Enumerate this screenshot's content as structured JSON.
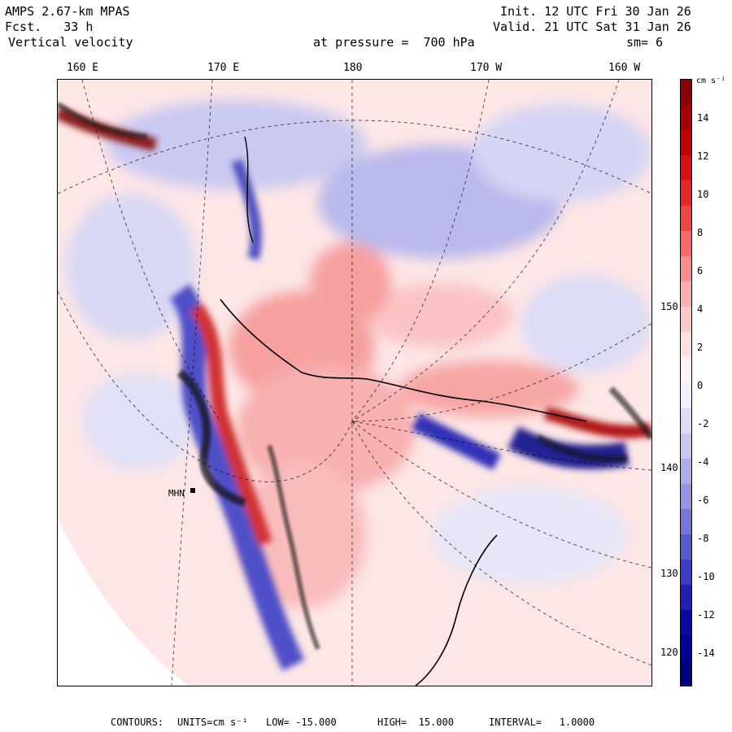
{
  "header": {
    "model": "AMPS 2.67-km MPAS",
    "fcst": "Fcst.   33 h",
    "field": "Vertical velocity",
    "init": "Init. 12 UTC Fri 30 Jan 26",
    "valid": "Valid. 21 UTC Sat 31 Jan 26",
    "pressure": "at pressure =  700 hPa",
    "smooth": "sm= 6"
  },
  "lon_labels": [
    "160 E",
    "170 E",
    "180",
    "170 W",
    "160 W"
  ],
  "lat_labels": [
    "150 W",
    "140 W",
    "130 W",
    "120 W"
  ],
  "colorbar": {
    "units": "cm s⁻¹",
    "labels": [
      "14",
      "12",
      "10",
      "8",
      "6",
      "4",
      "2",
      "0",
      "-2",
      "-4",
      "-6",
      "-8",
      "-10",
      "-12",
      "-14"
    ],
    "colors": [
      "#8b0000",
      "#a80000",
      "#c00000",
      "#d81010",
      "#e82828",
      "#f24646",
      "#f86868",
      "#fb8d8d",
      "#fdaeae",
      "#fdc9c9",
      "#fee0e0",
      "#fff3f3",
      "#f0f0fb",
      "#dcdcf6",
      "#c6c6f0",
      "#adadea",
      "#9494e2",
      "#7676d8",
      "#5a5ad0",
      "#3c3cc6",
      "#2020b8",
      "#0808a8",
      "#000096",
      "#00007e"
    ]
  },
  "footer": {
    "contours_label": "CONTOURS:",
    "units": "UNITS=cm s⁻¹",
    "low": "LOW= -15.000",
    "high": "HIGH=  15.000",
    "interval": "INTERVAL=   1.0000"
  },
  "map": {
    "station": "MHN"
  }
}
